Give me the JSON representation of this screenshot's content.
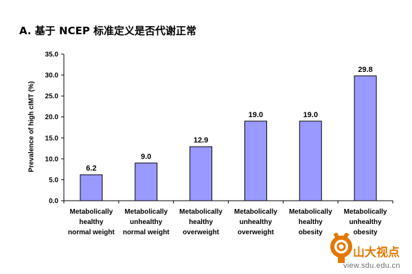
{
  "page": {
    "title": "A. 基于 NCEP 标准定义是否代谢正常"
  },
  "colors": {
    "bar": "#9999ff",
    "bar_stroke": "#000000",
    "axis": "#000000",
    "watermark": "#e37800"
  },
  "chart_data": {
    "type": "bar",
    "title": "A. 基于 NCEP 标准定义是否代谢正常",
    "xlabel": "",
    "ylabel": "Prevalence of high cIMT (%)",
    "ylim": [
      0,
      35
    ],
    "yticks": [
      "0.0",
      "5.0",
      "10.0",
      "15.0",
      "20.0",
      "25.0",
      "30.0",
      "35.0"
    ],
    "categories": [
      [
        "Metabolically",
        "healthy",
        "normal weight"
      ],
      [
        "Metabolically",
        "unhealthy",
        "normal weight"
      ],
      [
        "Metabolically",
        "healthy",
        "overweight"
      ],
      [
        "Metabolically",
        "unhealthy",
        "overweight"
      ],
      [
        "Metabolically",
        "healthy",
        "obesity"
      ],
      [
        "Metabolically",
        "unhealthy",
        "obesity"
      ]
    ],
    "values": [
      6.2,
      9.0,
      12.9,
      19.0,
      19.0,
      29.8
    ],
    "value_labels": [
      "6.2",
      "9.0",
      "12.9",
      "19.0",
      "19.0",
      "29.8"
    ],
    "grid": false,
    "legend": "none"
  },
  "watermark": {
    "name": "山大视点",
    "url": "view.sdu.edu.cn",
    "icon": "sdu-logo-icon"
  }
}
